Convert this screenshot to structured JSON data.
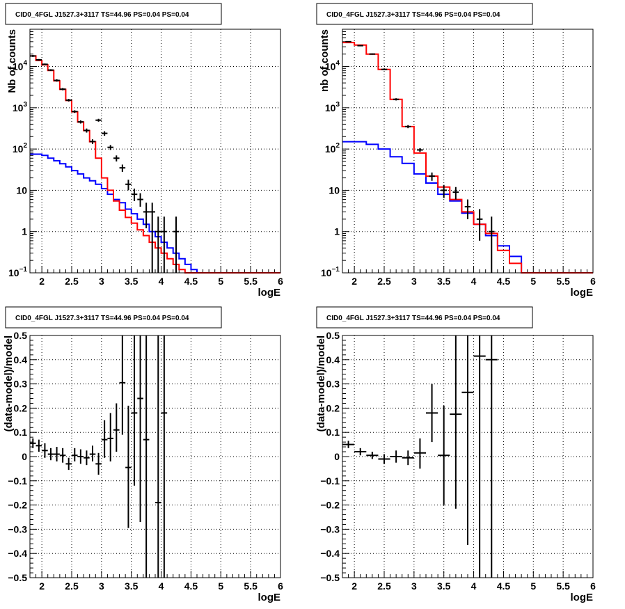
{
  "panel_title": "CID0_4FGL J1527.3+3117 TS=44.96 PS=0.04 PS=0.04",
  "colors": {
    "data": "#000000",
    "total_model": "#ff0000",
    "source_model": "#0000ff",
    "grid": "#000000",
    "frame": "#000000"
  },
  "chart_data": [
    {
      "type": "line",
      "title": "CID0_4FGL J1527.3+3117 TS=44.96 PS=0.04 PS=0.04",
      "xlabel": "logE",
      "ylabel": "Nb of counts",
      "xlim": [
        1.8,
        6
      ],
      "ylim": [
        0.1,
        80000
      ],
      "yscale": "log",
      "grid": true,
      "x_ticks": [
        2,
        2.5,
        3,
        3.5,
        4,
        4.5,
        5,
        5.5,
        6
      ],
      "x_tick_labels": [
        "2",
        "2.5",
        "3",
        "3.5",
        "4",
        "4.5",
        "5",
        "5.5",
        "6"
      ],
      "y_ticks": [
        0.1,
        1,
        10,
        100,
        1000,
        10000
      ],
      "y_tick_labels": [
        {
          "base": "10",
          "exp": "−1"
        },
        {
          "base": "1",
          "exp": ""
        },
        {
          "base": "10",
          "exp": ""
        },
        {
          "base": "10",
          "exp": "2"
        },
        {
          "base": "10",
          "exp": "3"
        },
        {
          "base": "10",
          "exp": "4"
        }
      ],
      "bin_edges": [
        1.8,
        1.9,
        2.0,
        2.1,
        2.2,
        2.3,
        2.4,
        2.5,
        2.6,
        2.7,
        2.8,
        2.9,
        3.0,
        3.1,
        3.2,
        3.3,
        3.4,
        3.5,
        3.6,
        3.7,
        3.8,
        3.9,
        4.0,
        4.1,
        4.2,
        4.3,
        4.4,
        4.5,
        4.6,
        4.7,
        4.8,
        4.9,
        5.0,
        5.1,
        5.2,
        5.3,
        5.4,
        5.5,
        5.6,
        5.7,
        5.8,
        5.9,
        6.0
      ],
      "series": [
        {
          "role": "source_model",
          "values": [
            75,
            75,
            70,
            60,
            52,
            44,
            37,
            30,
            25,
            20,
            17,
            14,
            11,
            8,
            6,
            5,
            3.5,
            2.7,
            2.0,
            1.5,
            1.0,
            0.75,
            0.55,
            0.4,
            0.3,
            0.22,
            0.16,
            0.12,
            0.1,
            0.1,
            0.1,
            0.1,
            0.1,
            0.1,
            0.1,
            0.1,
            0.1,
            0.1,
            0.1,
            0.1,
            0.1,
            0.1
          ]
        },
        {
          "role": "total_model",
          "values": [
            18000,
            14000,
            11000,
            8000,
            4500,
            2800,
            1500,
            800,
            450,
            280,
            150,
            60,
            20,
            10,
            5.5,
            3.3,
            2.2,
            1.6,
            1.1,
            0.8,
            0.55,
            0.4,
            0.3,
            0.22,
            0.16,
            0.12,
            0.1,
            0.1,
            0.1,
            0.1,
            0.1,
            0.1,
            0.1,
            0.1,
            0.1,
            0.1,
            0.1,
            0.1,
            0.1,
            0.1,
            0.1,
            0.1
          ]
        }
      ],
      "points": [
        {
          "x": 1.85,
          "y": 18000,
          "lo": 17000,
          "hi": 19000
        },
        {
          "x": 1.95,
          "y": 14500,
          "lo": 13800,
          "hi": 15200
        },
        {
          "x": 2.05,
          "y": 11300,
          "lo": 10800,
          "hi": 11800
        },
        {
          "x": 2.15,
          "y": 8200,
          "lo": 7800,
          "hi": 8600
        },
        {
          "x": 2.25,
          "y": 4600,
          "lo": 4300,
          "hi": 4900
        },
        {
          "x": 2.35,
          "y": 2820,
          "lo": 2650,
          "hi": 3000
        },
        {
          "x": 2.45,
          "y": 1530,
          "lo": 1420,
          "hi": 1640
        },
        {
          "x": 2.55,
          "y": 810,
          "lo": 750,
          "hi": 870
        },
        {
          "x": 2.65,
          "y": 455,
          "lo": 415,
          "hi": 495
        },
        {
          "x": 2.75,
          "y": 282,
          "lo": 250,
          "hi": 314
        },
        {
          "x": 2.85,
          "y": 152,
          "lo": 132,
          "hi": 172
        },
        {
          "x": 2.95,
          "y": 500,
          "lo": 460,
          "hi": 540
        },
        {
          "x": 3.05,
          "y": 240,
          "lo": 210,
          "hi": 270
        },
        {
          "x": 3.15,
          "y": 110,
          "lo": 95,
          "hi": 125
        },
        {
          "x": 3.25,
          "y": 60,
          "lo": 50,
          "hi": 70
        },
        {
          "x": 3.35,
          "y": 35,
          "lo": 28,
          "hi": 42
        },
        {
          "x": 3.45,
          "y": 14,
          "lo": 10,
          "hi": 18
        },
        {
          "x": 3.55,
          "y": 8,
          "lo": 5.5,
          "hi": 11
        },
        {
          "x": 3.65,
          "y": 6,
          "lo": 4,
          "hi": 8.5
        },
        {
          "x": 3.75,
          "y": 3,
          "lo": 1.2,
          "hi": 5
        },
        {
          "x": 3.85,
          "y": 3,
          "lo": 0.1,
          "hi": 5
        },
        {
          "x": 3.95,
          "y": 1,
          "lo": 0.1,
          "hi": 2.3
        },
        {
          "x": 4.05,
          "y": 1,
          "lo": 0.1,
          "hi": 2.3
        },
        {
          "x": 4.25,
          "y": 1,
          "lo": 0.1,
          "hi": 2.3
        }
      ]
    },
    {
      "type": "line",
      "title": "CID0_4FGL J1527.3+3117 TS=44.96 PS=0.04 PS=0.04",
      "xlabel": "logE",
      "ylabel": "nb of counts",
      "xlim": [
        1.8,
        6
      ],
      "ylim": [
        0.1,
        80000
      ],
      "yscale": "log",
      "grid": true,
      "x_ticks": [
        2,
        2.5,
        3,
        3.5,
        4,
        4.5,
        5,
        5.5,
        6
      ],
      "x_tick_labels": [
        "2",
        "2.5",
        "3",
        "3.5",
        "4",
        "4.5",
        "5",
        "5.5",
        "6"
      ],
      "y_ticks": [
        0.1,
        1,
        10,
        100,
        1000,
        10000
      ],
      "y_tick_labels": [
        {
          "base": "10",
          "exp": "−1"
        },
        {
          "base": "1",
          "exp": ""
        },
        {
          "base": "10",
          "exp": ""
        },
        {
          "base": "10",
          "exp": "2"
        },
        {
          "base": "10",
          "exp": "3"
        },
        {
          "base": "10",
          "exp": "4"
        }
      ],
      "bin_edges": [
        1.8,
        2.0,
        2.2,
        2.4,
        2.6,
        2.8,
        3.0,
        3.2,
        3.4,
        3.6,
        3.8,
        4.0,
        4.2,
        4.4,
        4.6,
        4.8,
        5.0,
        5.2,
        5.4,
        5.6,
        5.8,
        6.0
      ],
      "series": [
        {
          "role": "source_model",
          "values": [
            150,
            150,
            130,
            100,
            65,
            45,
            25,
            15,
            8,
            5.5,
            2.8,
            1.5,
            0.8,
            0.45,
            0.25,
            0.1,
            0.1,
            0.1,
            0.1,
            0.1,
            0.1
          ]
        },
        {
          "role": "total_model",
          "values": [
            38000,
            33000,
            20000,
            8500,
            1600,
            350,
            80,
            22,
            12,
            6,
            3,
            1.5,
            0.9,
            0.35,
            0.17,
            0.1,
            0.1,
            0.1,
            0.1,
            0.1,
            0.1
          ]
        }
      ],
      "points": [
        {
          "x": 1.9,
          "y": 40000,
          "lo": 39000,
          "hi": 41000
        },
        {
          "x": 2.1,
          "y": 32000,
          "lo": 31000,
          "hi": 33000
        },
        {
          "x": 2.3,
          "y": 20000,
          "lo": 19300,
          "hi": 20700
        },
        {
          "x": 2.5,
          "y": 8500,
          "lo": 8100,
          "hi": 8900
        },
        {
          "x": 2.7,
          "y": 1600,
          "lo": 1500,
          "hi": 1700
        },
        {
          "x": 2.9,
          "y": 350,
          "lo": 320,
          "hi": 380
        },
        {
          "x": 3.1,
          "y": 95,
          "lo": 85,
          "hi": 105
        },
        {
          "x": 3.3,
          "y": 22,
          "lo": 17,
          "hi": 27
        },
        {
          "x": 3.5,
          "y": 10,
          "lo": 6.5,
          "hi": 13.5
        },
        {
          "x": 3.7,
          "y": 9,
          "lo": 6,
          "hi": 12
        },
        {
          "x": 3.9,
          "y": 4,
          "lo": 2,
          "hi": 6
        },
        {
          "x": 4.1,
          "y": 2,
          "lo": 0.6,
          "hi": 3.5
        },
        {
          "x": 4.3,
          "y": 1,
          "lo": 0.1,
          "hi": 2.3
        }
      ]
    },
    {
      "type": "scatter",
      "title": "CID0_4FGL J1527.3+3117 TS=44.96 PS=0.04 PS=0.04",
      "xlabel": "logE",
      "ylabel": "(data-model)/model",
      "xlim": [
        1.8,
        6
      ],
      "ylim": [
        -0.5,
        0.5
      ],
      "grid": true,
      "x_ticks": [
        2,
        2.5,
        3,
        3.5,
        4,
        4.5,
        5,
        5.5,
        6
      ],
      "x_tick_labels": [
        "2",
        "2.5",
        "3",
        "3.5",
        "4",
        "4.5",
        "5",
        "5.5",
        "6"
      ],
      "y_ticks": [
        -0.5,
        -0.4,
        -0.3,
        -0.2,
        -0.1,
        0,
        0.1,
        0.2,
        0.3,
        0.4,
        0.5
      ],
      "y_tick_labels": [
        "−0.5",
        "−0.4",
        "−0.3",
        "−0.2",
        "−0.1",
        "0",
        "0.1",
        "0.2",
        "0.3",
        "0.4",
        "0.5"
      ],
      "xerr_half": 0.05,
      "points": [
        {
          "x": 1.85,
          "y": 0.055,
          "lo": 0.035,
          "hi": 0.075
        },
        {
          "x": 1.95,
          "y": 0.045,
          "lo": 0.02,
          "hi": 0.07
        },
        {
          "x": 2.05,
          "y": 0.025,
          "lo": -0.005,
          "hi": 0.055
        },
        {
          "x": 2.15,
          "y": 0.01,
          "lo": -0.015,
          "hi": 0.035
        },
        {
          "x": 2.25,
          "y": 0.01,
          "lo": -0.02,
          "hi": 0.04
        },
        {
          "x": 2.35,
          "y": 0.005,
          "lo": -0.025,
          "hi": 0.035
        },
        {
          "x": 2.45,
          "y": -0.03,
          "lo": -0.055,
          "hi": -0.005
        },
        {
          "x": 2.55,
          "y": 0.005,
          "lo": -0.02,
          "hi": 0.035
        },
        {
          "x": 2.65,
          "y": 0.0,
          "lo": -0.03,
          "hi": 0.03
        },
        {
          "x": 2.75,
          "y": -0.005,
          "lo": -0.035,
          "hi": 0.025
        },
        {
          "x": 2.85,
          "y": 0.01,
          "lo": -0.02,
          "hi": 0.045
        },
        {
          "x": 2.95,
          "y": -0.03,
          "lo": -0.075,
          "hi": 0.015
        },
        {
          "x": 3.05,
          "y": 0.07,
          "lo": -0.005,
          "hi": 0.15
        },
        {
          "x": 3.15,
          "y": 0.075,
          "lo": -0.02,
          "hi": 0.18
        },
        {
          "x": 3.25,
          "y": 0.11,
          "lo": 0.02,
          "hi": 0.22
        },
        {
          "x": 3.35,
          "y": 0.305,
          "lo": 0.09,
          "hi": 0.5
        },
        {
          "x": 3.45,
          "y": -0.045,
          "lo": -0.295,
          "hi": 0.21
        },
        {
          "x": 3.55,
          "y": 0.18,
          "lo": -0.12,
          "hi": 0.5
        },
        {
          "x": 3.65,
          "y": 0.24,
          "lo": -0.27,
          "hi": 0.5
        },
        {
          "x": 3.75,
          "y": 0.07,
          "lo": -0.5,
          "hi": 0.5
        },
        {
          "x": 3.95,
          "y": -0.19,
          "lo": -0.5,
          "hi": 0.5
        },
        {
          "x": 4.05,
          "y": 0.18,
          "lo": -0.5,
          "hi": 0.5
        }
      ]
    },
    {
      "type": "scatter",
      "title": "CID0_4FGL J1527.3+3117 TS=44.96 PS=0.04 PS=0.04",
      "xlabel": "logE",
      "ylabel": "(data-model)/model",
      "xlim": [
        1.8,
        6
      ],
      "ylim": [
        -0.5,
        0.5
      ],
      "grid": true,
      "x_ticks": [
        2,
        2.5,
        3,
        3.5,
        4,
        4.5,
        5,
        5.5,
        6
      ],
      "x_tick_labels": [
        "2",
        "2.5",
        "3",
        "3.5",
        "4",
        "4.5",
        "5",
        "5.5",
        "6"
      ],
      "y_ticks": [
        -0.5,
        -0.4,
        -0.3,
        -0.2,
        -0.1,
        0,
        0.1,
        0.2,
        0.3,
        0.4,
        0.5
      ],
      "y_tick_labels": [
        "−0.5",
        "−0.4",
        "−0.3",
        "−0.2",
        "−0.1",
        "0",
        "0.1",
        "0.2",
        "0.3",
        "0.4",
        "0.5"
      ],
      "xerr_half": 0.1,
      "points": [
        {
          "x": 1.9,
          "y": 0.05,
          "lo": 0.035,
          "hi": 0.065
        },
        {
          "x": 2.1,
          "y": 0.02,
          "lo": 0.005,
          "hi": 0.035
        },
        {
          "x": 2.3,
          "y": 0.005,
          "lo": -0.01,
          "hi": 0.02
        },
        {
          "x": 2.5,
          "y": -0.01,
          "lo": -0.03,
          "hi": 0.01
        },
        {
          "x": 2.7,
          "y": 0.0,
          "lo": -0.025,
          "hi": 0.025
        },
        {
          "x": 2.9,
          "y": -0.005,
          "lo": -0.035,
          "hi": 0.025
        },
        {
          "x": 3.1,
          "y": 0.015,
          "lo": -0.05,
          "hi": 0.075
        },
        {
          "x": 3.3,
          "y": 0.18,
          "lo": 0.06,
          "hi": 0.3
        },
        {
          "x": 3.5,
          "y": 0.005,
          "lo": -0.2,
          "hi": 0.21
        },
        {
          "x": 3.7,
          "y": 0.175,
          "lo": -0.215,
          "hi": 0.5
        },
        {
          "x": 3.9,
          "y": 0.265,
          "lo": -0.365,
          "hi": 0.5
        },
        {
          "x": 4.1,
          "y": 0.415,
          "lo": -0.5,
          "hi": 0.5
        },
        {
          "x": 4.3,
          "y": 0.4,
          "lo": -0.5,
          "hi": 0.5
        }
      ]
    }
  ]
}
